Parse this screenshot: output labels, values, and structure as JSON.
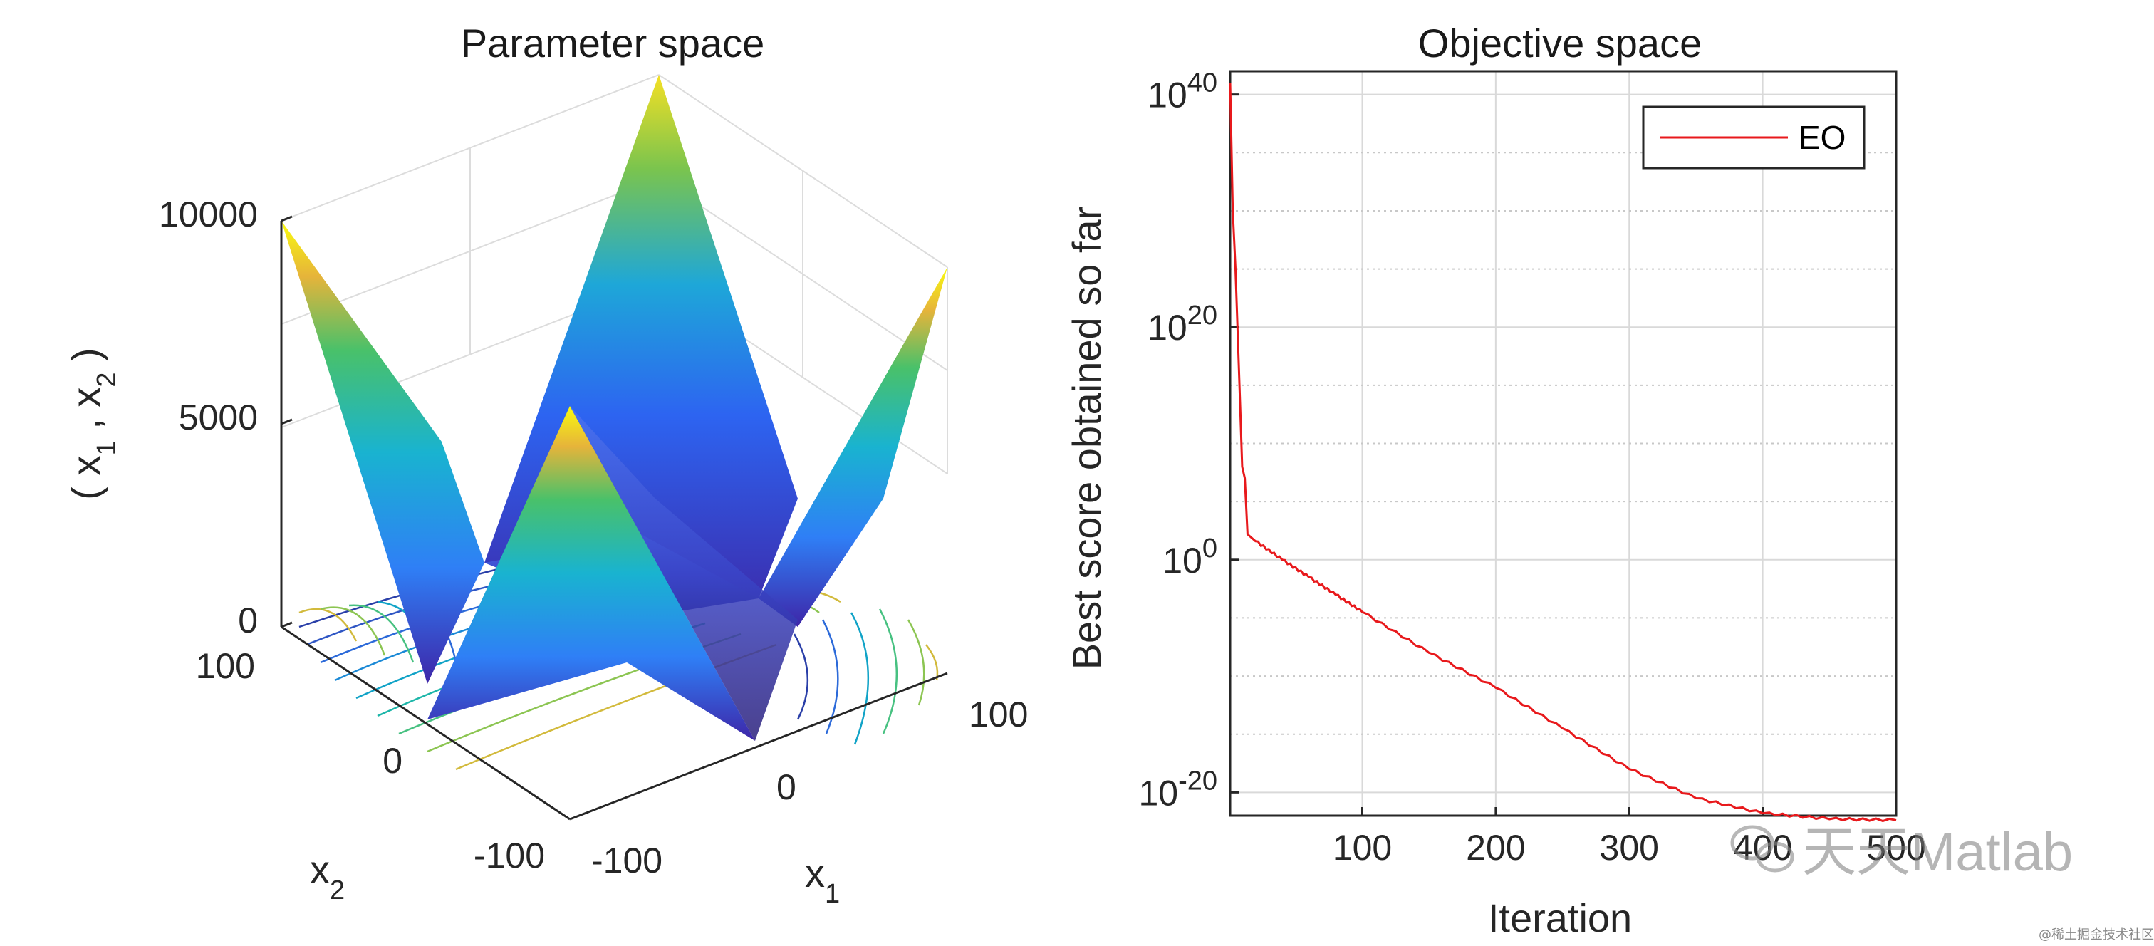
{
  "chart_data": [
    {
      "type": "surface3d",
      "title": "Parameter space",
      "xlabel": "x",
      "xlabel_sub": "1",
      "ylabel": "x",
      "ylabel_sub": "2",
      "zlabel": {
        "open": "( x",
        "sub1": "1",
        "mid": " , x",
        "sub2": "2",
        "close": " )"
      },
      "xlim": [
        -100,
        100
      ],
      "ylim": [
        -100,
        100
      ],
      "zlim": [
        0,
        10000
      ],
      "x_ticks": [
        "-100",
        "0",
        "100"
      ],
      "y_ticks": [
        "-100",
        "0",
        "100"
      ],
      "z_ticks": [
        "0",
        "5000",
        "10000"
      ],
      "function": "max(|x1|,|x2|)^2 shaped surface with contour projection",
      "colormap": "parula"
    },
    {
      "type": "line",
      "title": "Objective space",
      "xlabel": "Iteration",
      "ylabel": "Best score obtained so far",
      "yscale": "log",
      "xlim": [
        1,
        500
      ],
      "ylim_exp": [
        -22,
        42
      ],
      "x_ticks": [
        "100",
        "200",
        "300",
        "400",
        "500"
      ],
      "y_ticks": [
        {
          "base": "10",
          "exp": "40"
        },
        {
          "base": "10",
          "exp": "20"
        },
        {
          "base": "10",
          "exp": "0"
        },
        {
          "base": "10",
          "exp": "-20"
        }
      ],
      "grid": true,
      "legend_position": "top-right",
      "series": [
        {
          "name": "EO",
          "color": "#e8191c",
          "x": [
            1,
            3,
            5,
            8,
            10,
            12,
            14,
            16,
            20,
            40,
            60,
            80,
            100,
            150,
            200,
            250,
            300,
            350,
            400,
            450,
            500
          ],
          "log10_y": [
            41,
            30,
            25,
            15,
            8,
            7,
            2.2,
            2,
            1.6,
            0,
            -1.5,
            -3,
            -4.5,
            -8,
            -11,
            -14.5,
            -18,
            -20.5,
            -21.8,
            -22.3,
            -22.4
          ]
        }
      ]
    }
  ],
  "watermark": {
    "text": "天天Matlab",
    "small": "@稀土掘金技术社区"
  },
  "colors": {
    "line": "#e8191c",
    "grid": "#d9d9d9",
    "axis": "#262626"
  }
}
